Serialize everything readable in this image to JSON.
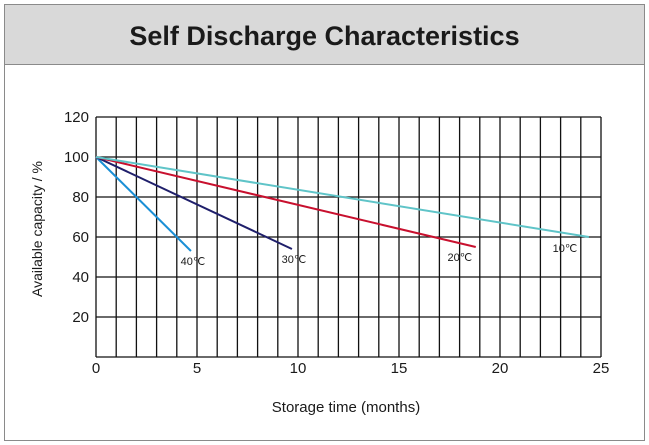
{
  "chart_data": {
    "type": "line",
    "title": "Self Discharge Characteristics",
    "xlabel": "Storage time (months)",
    "ylabel": "Available capacity / %",
    "xlim": [
      0,
      25
    ],
    "ylim": [
      0,
      120
    ],
    "x_ticks": [
      0,
      5,
      10,
      15,
      20,
      25
    ],
    "y_ticks": [
      20,
      40,
      60,
      80,
      100,
      120
    ],
    "grid": true,
    "series": [
      {
        "name": "40℃",
        "color": "#1a8fd6",
        "x": [
          0,
          4.7
        ],
        "y": [
          100,
          53
        ]
      },
      {
        "name": "30℃",
        "color": "#1f1f6b",
        "x": [
          0,
          9.7
        ],
        "y": [
          100,
          54
        ]
      },
      {
        "name": "20℃",
        "color": "#c8102e",
        "x": [
          0,
          18.8
        ],
        "y": [
          100,
          55
        ]
      },
      {
        "name": "10℃",
        "color": "#5fc4c8",
        "x": [
          0,
          24.4
        ],
        "y": [
          100,
          60
        ]
      }
    ]
  }
}
